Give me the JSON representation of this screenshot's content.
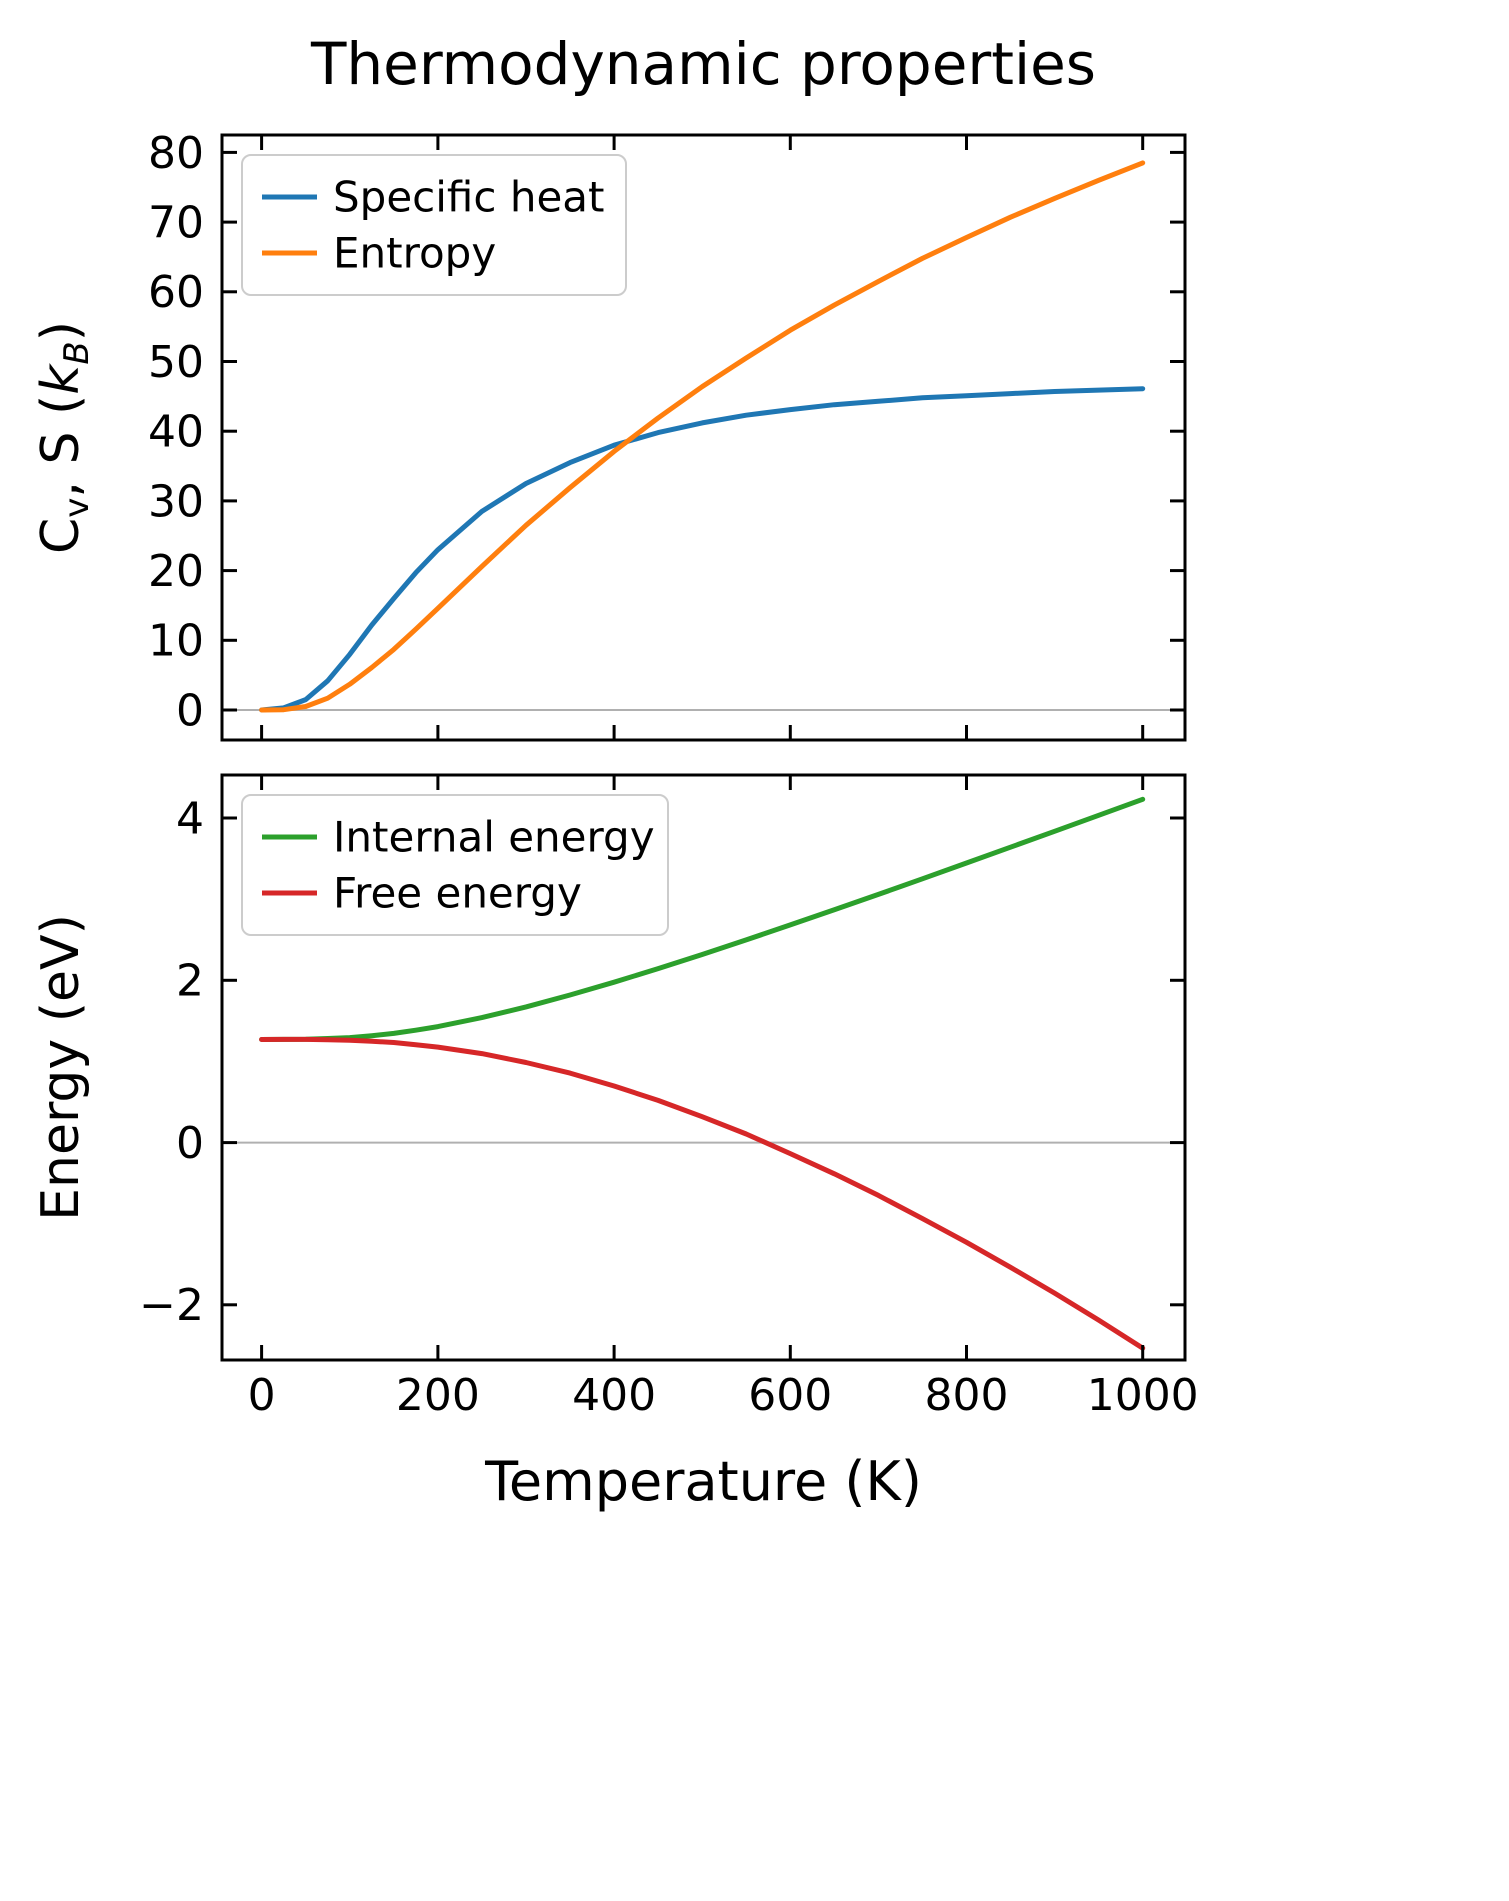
{
  "figure": {
    "title": "Thermodynamic properties",
    "background": "#ffffff"
  },
  "chart_data": [
    {
      "type": "line",
      "title": "Thermodynamic properties",
      "xlabel": "",
      "ylabel": "Cv, S (kB)",
      "ylabel_rich": [
        {
          "text": "C"
        },
        {
          "text": "v",
          "sub": true
        },
        {
          "text": ", S ("
        },
        {
          "text": "k",
          "italic": true
        },
        {
          "text": "B",
          "sub": true,
          "italic": true
        },
        {
          "text": ")"
        }
      ],
      "xlim": [
        -45,
        1048
      ],
      "ylim": [
        -4.3,
        82.5
      ],
      "xticks": [
        0,
        200,
        400,
        600,
        800,
        1000
      ],
      "xticklabels": [
        "0",
        "200",
        "400",
        "600",
        "800",
        "1000"
      ],
      "show_x_tick_labels": false,
      "yticks": [
        0,
        10,
        20,
        30,
        40,
        50,
        60,
        70,
        80
      ],
      "yticklabels": [
        "0",
        "10",
        "20",
        "30",
        "40",
        "50",
        "60",
        "70",
        "80"
      ],
      "zero_line": true,
      "zero_line_color": "#b0b0b0",
      "grid": false,
      "legend": {
        "position": "upper left",
        "labels": [
          "Specific heat",
          "Entropy"
        ]
      },
      "x": [
        0,
        25,
        50,
        75,
        100,
        125,
        150,
        175,
        200,
        250,
        300,
        350,
        400,
        450,
        500,
        550,
        600,
        650,
        700,
        750,
        800,
        850,
        900,
        950,
        1000
      ],
      "series": [
        {
          "name": "Specific heat",
          "color": "#1f77b4",
          "values": [
            0,
            0.3,
            1.5,
            4.2,
            8.0,
            12.2,
            16.0,
            19.7,
            23.0,
            28.5,
            32.5,
            35.5,
            38.0,
            39.8,
            41.2,
            42.3,
            43.1,
            43.8,
            44.3,
            44.8,
            45.1,
            45.4,
            45.7,
            45.9,
            46.1
          ]
        },
        {
          "name": "Entropy",
          "color": "#ff7f0e",
          "values": [
            0,
            0.05,
            0.5,
            1.7,
            3.7,
            6.1,
            8.7,
            11.6,
            14.6,
            20.6,
            26.5,
            31.9,
            37.1,
            41.9,
            46.4,
            50.5,
            54.5,
            58.1,
            61.5,
            64.8,
            67.8,
            70.7,
            73.4,
            76.0,
            78.5
          ]
        }
      ]
    },
    {
      "type": "line",
      "title": "",
      "xlabel": "Temperature (K)",
      "ylabel": "Energy (eV)",
      "xlim": [
        -45,
        1048
      ],
      "ylim": [
        -2.68,
        4.53
      ],
      "xticks": [
        0,
        200,
        400,
        600,
        800,
        1000
      ],
      "xticklabels": [
        "0",
        "200",
        "400",
        "600",
        "800",
        "1000"
      ],
      "show_x_tick_labels": true,
      "yticks": [
        -2,
        0,
        2,
        4
      ],
      "yticklabels": [
        "−2",
        "0",
        "2",
        "4"
      ],
      "zero_line": true,
      "zero_line_color": "#b0b0b0",
      "grid": false,
      "legend": {
        "position": "upper left",
        "labels": [
          "Internal energy",
          "Free energy"
        ]
      },
      "x": [
        0,
        25,
        50,
        75,
        100,
        125,
        150,
        175,
        200,
        250,
        300,
        350,
        400,
        450,
        500,
        550,
        600,
        650,
        700,
        750,
        800,
        850,
        900,
        950,
        1000
      ],
      "series": [
        {
          "name": "Internal energy",
          "color": "#2ca02c",
          "values": [
            1.27,
            1.271,
            1.273,
            1.282,
            1.294,
            1.317,
            1.345,
            1.385,
            1.429,
            1.54,
            1.672,
            1.818,
            1.976,
            2.144,
            2.318,
            2.498,
            2.682,
            2.869,
            3.059,
            3.251,
            3.445,
            3.64,
            3.836,
            4.033,
            4.231
          ]
        },
        {
          "name": "Free energy",
          "color": "#d62728",
          "values": [
            1.27,
            1.271,
            1.271,
            1.268,
            1.262,
            1.248,
            1.233,
            1.206,
            1.177,
            1.096,
            0.987,
            0.856,
            0.697,
            0.519,
            0.319,
            0.105,
            -0.136,
            -0.385,
            -0.651,
            -0.937,
            -1.229,
            -1.538,
            -1.856,
            -2.188,
            -2.533
          ]
        }
      ]
    }
  ]
}
